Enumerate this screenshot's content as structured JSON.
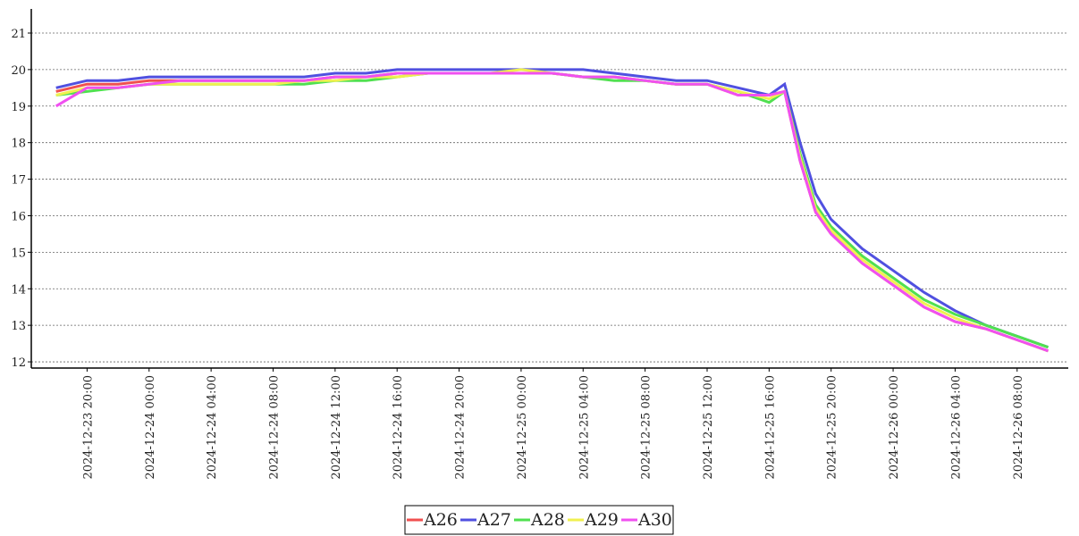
{
  "chart_data": {
    "type": "line",
    "x": [
      "2024-12-23 18:00",
      "2024-12-23 20:00",
      "2024-12-23 22:00",
      "2024-12-24 00:00",
      "2024-12-24 02:00",
      "2024-12-24 04:00",
      "2024-12-24 06:00",
      "2024-12-24 08:00",
      "2024-12-24 10:00",
      "2024-12-24 12:00",
      "2024-12-24 14:00",
      "2024-12-24 16:00",
      "2024-12-24 18:00",
      "2024-12-24 20:00",
      "2024-12-24 22:00",
      "2024-12-25 00:00",
      "2024-12-25 02:00",
      "2024-12-25 04:00",
      "2024-12-25 06:00",
      "2024-12-25 08:00",
      "2024-12-25 10:00",
      "2024-12-25 12:00",
      "2024-12-25 14:00",
      "2024-12-25 16:00",
      "2024-12-25 17:00",
      "2024-12-25 18:00",
      "2024-12-25 19:00",
      "2024-12-25 20:00",
      "2024-12-25 22:00",
      "2024-12-26 00:00",
      "2024-12-26 02:00",
      "2024-12-26 04:00",
      "2024-12-26 06:00",
      "2024-12-26 08:00",
      "2024-12-26 10:00"
    ],
    "series": [
      {
        "name": "A26",
        "color": "#f05050",
        "values": [
          19.4,
          19.6,
          19.6,
          19.7,
          19.7,
          19.7,
          19.7,
          19.7,
          19.7,
          19.8,
          19.8,
          19.9,
          19.9,
          19.9,
          19.9,
          19.9,
          19.9,
          19.8,
          19.8,
          19.7,
          19.6,
          19.6,
          19.3,
          19.3,
          19.4,
          17.5,
          16.1,
          15.5,
          14.7,
          14.1,
          13.5,
          13.1,
          12.9,
          12.6,
          12.3
        ]
      },
      {
        "name": "A27",
        "color": "#5050e0",
        "values": [
          19.5,
          19.7,
          19.7,
          19.8,
          19.8,
          19.8,
          19.8,
          19.8,
          19.8,
          19.9,
          19.9,
          20.0,
          20.0,
          20.0,
          20.0,
          20.0,
          20.0,
          20.0,
          19.9,
          19.8,
          19.7,
          19.7,
          19.5,
          19.3,
          19.6,
          18.0,
          16.6,
          15.9,
          15.1,
          14.5,
          13.9,
          13.4,
          13.0,
          12.7,
          12.4
        ]
      },
      {
        "name": "A28",
        "color": "#50e050",
        "values": [
          19.3,
          19.4,
          19.5,
          19.6,
          19.6,
          19.6,
          19.6,
          19.6,
          19.6,
          19.7,
          19.7,
          19.8,
          19.9,
          19.9,
          19.9,
          19.9,
          19.9,
          19.8,
          19.7,
          19.7,
          19.6,
          19.6,
          19.4,
          19.1,
          19.4,
          17.7,
          16.3,
          15.7,
          14.9,
          14.3,
          13.7,
          13.3,
          13.0,
          12.7,
          12.4
        ]
      },
      {
        "name": "A29",
        "color": "#f0f050",
        "values": [
          19.3,
          19.5,
          19.5,
          19.6,
          19.6,
          19.6,
          19.6,
          19.6,
          19.7,
          19.7,
          19.8,
          19.8,
          19.9,
          19.9,
          19.9,
          20.0,
          19.9,
          19.8,
          19.8,
          19.7,
          19.6,
          19.6,
          19.4,
          19.2,
          19.4,
          17.6,
          16.2,
          15.6,
          14.8,
          14.2,
          13.6,
          13.2,
          12.9,
          12.6,
          12.3
        ]
      },
      {
        "name": "A30",
        "color": "#f050f0",
        "values": [
          19.0,
          19.5,
          19.5,
          19.6,
          19.7,
          19.7,
          19.7,
          19.7,
          19.7,
          19.8,
          19.8,
          19.9,
          19.9,
          19.9,
          19.9,
          19.9,
          19.9,
          19.8,
          19.8,
          19.7,
          19.6,
          19.6,
          19.3,
          19.3,
          19.4,
          17.5,
          16.1,
          15.5,
          14.7,
          14.1,
          13.5,
          13.1,
          12.9,
          12.6,
          12.3
        ]
      }
    ],
    "xlim": [
      "2024-12-23 16:24",
      "2024-12-26 11:18"
    ],
    "xticks": [
      "2024-12-23 20:00",
      "2024-12-24 00:00",
      "2024-12-24 04:00",
      "2024-12-24 08:00",
      "2024-12-24 12:00",
      "2024-12-24 16:00",
      "2024-12-24 20:00",
      "2024-12-25 00:00",
      "2024-12-25 04:00",
      "2024-12-25 08:00",
      "2024-12-25 12:00",
      "2024-12-25 16:00",
      "2024-12-25 20:00",
      "2024-12-26 00:00",
      "2024-12-26 04:00",
      "2024-12-26 08:00"
    ],
    "ylim": [
      11.83,
      21.66
    ],
    "yticks": [
      12,
      13,
      14,
      15,
      16,
      17,
      18,
      19,
      20,
      21
    ],
    "grid": true,
    "legend": "bottom"
  }
}
